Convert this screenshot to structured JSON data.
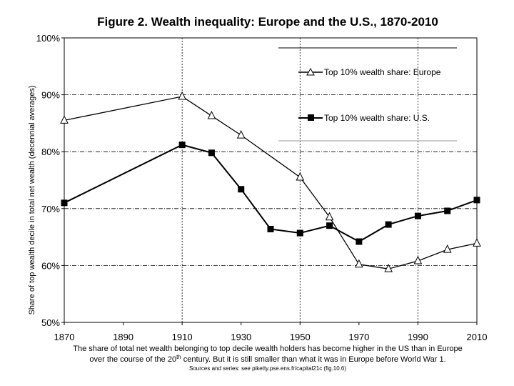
{
  "chart_data": {
    "type": "line",
    "title": "Figure 2. Wealth inequality: Europe and the U.S., 1870-2010",
    "ylabel": "Share of top wealth decile in total net wealth (decennial averages)",
    "xlabel": "",
    "xlim": [
      1870,
      2010
    ],
    "ylim": [
      50,
      100
    ],
    "x_ticks": [
      "1870",
      "1890",
      "1910",
      "1930",
      "1950",
      "1970",
      "1990",
      "2010"
    ],
    "x_tick_values": [
      1870,
      1890,
      1910,
      1930,
      1950,
      1970,
      1990,
      2010
    ],
    "y_ticks": [
      "50%",
      "60%",
      "70%",
      "80%",
      "90%",
      "100%"
    ],
    "y_tick_values": [
      50,
      60,
      70,
      80,
      90,
      100
    ],
    "series": [
      {
        "name": "Top 10% wealth share: Europe",
        "marker": "triangle-open",
        "x": [
          1870,
          1910,
          1920,
          1930,
          1950,
          1960,
          1970,
          1980,
          1990,
          2000,
          2010
        ],
        "values": [
          85.5,
          89.7,
          86.3,
          82.9,
          75.5,
          68.5,
          60.2,
          59.4,
          60.8,
          62.8,
          63.9
        ]
      },
      {
        "name": "Top 10% wealth share: U.S.",
        "marker": "square-filled",
        "x": [
          1870,
          1910,
          1920,
          1930,
          1940,
          1950,
          1960,
          1970,
          1980,
          1990,
          2000,
          2010
        ],
        "values": [
          71.0,
          81.2,
          79.8,
          73.4,
          66.4,
          65.7,
          67.0,
          64.2,
          67.2,
          68.7,
          69.6,
          71.5
        ]
      }
    ],
    "legend_position": "top-right",
    "caption_line1": "The share of total net wealth belonging to top decile wealth holders has become higher in the US than in Europe",
    "caption_line2_pre": "over the course of the 20",
    "caption_line2_sup": "th",
    "caption_line2_post": " century. But it is still smaller than what it was in Europe before World War 1.",
    "source": "Sources and series: see piketty.pse.ens.fr/capital21c (fig.10.6)"
  }
}
